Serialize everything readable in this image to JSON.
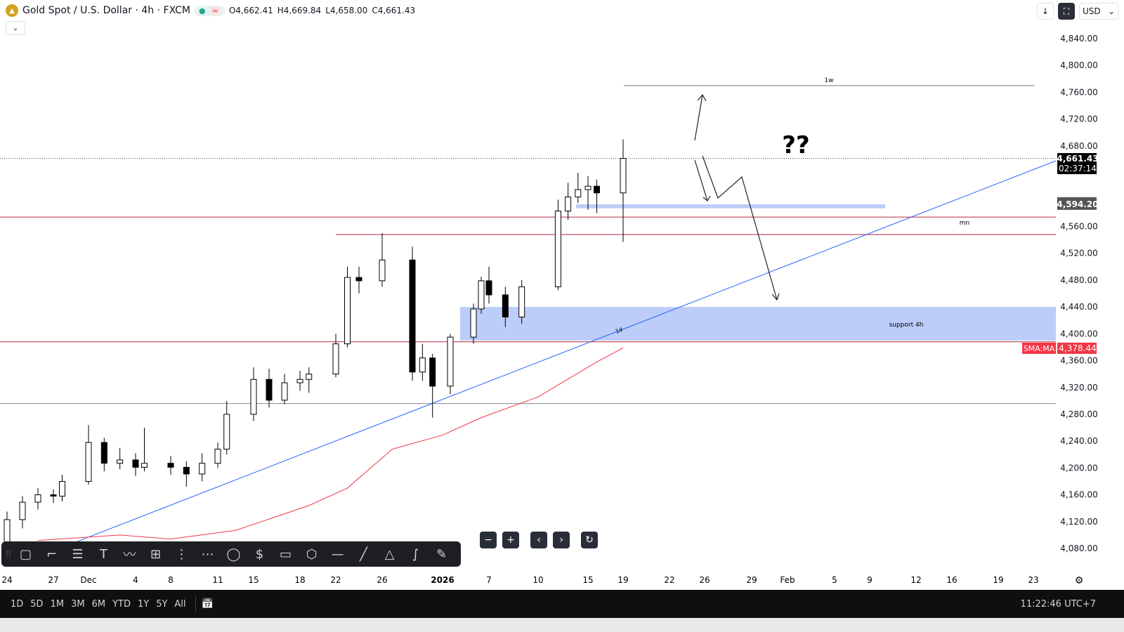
{
  "header": {
    "symbol": "Gold Spot / U.S. Dollar · 4h · FXCM",
    "logo_icon": "gold-coin-icon",
    "status_dot": "●",
    "status_wave": "≈",
    "open": "O4,662.41",
    "high": "H4,669.84",
    "low": "L4,658.00",
    "close": "C4,661.43",
    "collapse": "⌄"
  },
  "topright": {
    "download": "↓",
    "fullscreen": "⛶",
    "currency": "USD",
    "currency_caret": "⌄"
  },
  "chart_data": {
    "type": "candlestick",
    "ylim": [
      4060,
      4860
    ],
    "yticks": [
      4840,
      4800,
      4760,
      4720,
      4680,
      4640,
      4600,
      4560,
      4520,
      4480,
      4440,
      4400,
      4360,
      4320,
      4280,
      4240,
      4200,
      4160,
      4120,
      4080
    ],
    "ytick_labels": [
      "4,840.00",
      "4,800.00",
      "4,760.00",
      "4,720.00",
      "4,680.00",
      "4,640.00",
      "4,600.00",
      "4,560.00",
      "4,520.00",
      "4,480.00",
      "4,440.00",
      "4,400.00",
      "4,360.00",
      "4,320.00",
      "4,280.00",
      "4,240.00",
      "4,200.00",
      "4,160.00",
      "4,120.00",
      "4,080.00"
    ],
    "xtick_labels": [
      "24",
      "27",
      "Dec",
      "4",
      "8",
      "11",
      "15",
      "18",
      "22",
      "26",
      "2026",
      "7",
      "10",
      "15",
      "19",
      "22",
      "26",
      "29",
      "Feb",
      "5",
      "9",
      "12",
      "16",
      "19",
      "23"
    ],
    "candles": [
      [
        "2025-11-24",
        4085,
        4135,
        4075,
        4123
      ],
      [
        "2025-11-25",
        4123,
        4158,
        4110,
        4149
      ],
      [
        "2025-11-26",
        4149,
        4170,
        4138,
        4160
      ],
      [
        "2025-11-27",
        4160,
        4168,
        4148,
        4158
      ],
      [
        "2025-11-28",
        4158,
        4190,
        4150,
        4180
      ],
      [
        "2025-12-01",
        4180,
        4264,
        4175,
        4238
      ],
      [
        "2025-12-02",
        4238,
        4245,
        4195,
        4207
      ],
      [
        "2025-12-03",
        4207,
        4230,
        4198,
        4212
      ],
      [
        "2025-12-04",
        4212,
        4222,
        4188,
        4201
      ],
      [
        "2025-12-05",
        4201,
        4260,
        4195,
        4207
      ],
      [
        "2025-12-08",
        4207,
        4218,
        4190,
        4201
      ],
      [
        "2025-12-09",
        4201,
        4210,
        4172,
        4191
      ],
      [
        "2025-12-10",
        4191,
        4222,
        4180,
        4207
      ],
      [
        "2025-12-11",
        4207,
        4238,
        4200,
        4228
      ],
      [
        "2025-12-12",
        4228,
        4300,
        4220,
        4280
      ],
      [
        "2025-12-15",
        4280,
        4350,
        4270,
        4332
      ],
      [
        "2025-12-16",
        4332,
        4348,
        4290,
        4301
      ],
      [
        "2025-12-17",
        4301,
        4340,
        4295,
        4327
      ],
      [
        "2025-12-18",
        4327,
        4345,
        4315,
        4332
      ],
      [
        "2025-12-19",
        4332,
        4350,
        4312,
        4340
      ],
      [
        "2025-12-22",
        4340,
        4400,
        4335,
        4385
      ],
      [
        "2025-12-23",
        4385,
        4500,
        4380,
        4484
      ],
      [
        "2025-12-24",
        4484,
        4500,
        4460,
        4479
      ],
      [
        "2025-12-26",
        4479,
        4550,
        4470,
        4510
      ],
      [
        "2025-12-29",
        4510,
        4530,
        4330,
        4343
      ],
      [
        "2025-12-30",
        4343,
        4385,
        4330,
        4364
      ],
      [
        "2025-12-31",
        4364,
        4370,
        4275,
        4322
      ],
      [
        "2026-01-02",
        4322,
        4400,
        4310,
        4395
      ],
      [
        "2026-01-05",
        4395,
        4445,
        4385,
        4437
      ],
      [
        "2026-01-06",
        4437,
        4485,
        4430,
        4479
      ],
      [
        "2026-01-07",
        4479,
        4500,
        4445,
        4458
      ],
      [
        "2026-01-08",
        4458,
        4470,
        4410,
        4425
      ],
      [
        "2026-01-09",
        4425,
        4480,
        4415,
        4470
      ],
      [
        "2026-01-12",
        4470,
        4600,
        4465,
        4583
      ],
      [
        "2026-01-13",
        4583,
        4625,
        4570,
        4604
      ],
      [
        "2026-01-14",
        4604,
        4640,
        4595,
        4615
      ],
      [
        "2026-01-15",
        4615,
        4635,
        4585,
        4620
      ],
      [
        "2026-01-16",
        4620,
        4630,
        4580,
        4610
      ],
      [
        "2026-01-19",
        4610,
        4690,
        4537,
        4661.43
      ]
    ],
    "sma": {
      "name": "SMA:MA",
      "value": "4,378.44",
      "color": "#f23645",
      "points": [
        [
          "2025-11-26",
          4092
        ],
        [
          "2025-12-03",
          4100
        ],
        [
          "2025-12-08",
          4094
        ],
        [
          "2025-12-13",
          4107
        ],
        [
          "2025-12-19",
          4144
        ],
        [
          "2025-12-23",
          4170
        ],
        [
          "2025-12-27",
          4228
        ],
        [
          "2026-01-01",
          4249
        ],
        [
          "2026-01-06",
          4275
        ],
        [
          "2026-01-10",
          4306
        ],
        [
          "2026-01-16",
          4358
        ],
        [
          "2026-01-19",
          4379
        ]
      ]
    },
    "last_price": {
      "value": "4,661.43",
      "countdown": "02:37:14",
      "price": 4661.43
    },
    "marker_price": {
      "value": "4,594.20",
      "price": 4594.2
    },
    "colors": {
      "up": "#000000",
      "down": "#000000",
      "trend": "#2962ff",
      "level": "#b2243a",
      "zone": "#bbcdf8"
    },
    "annotations": {
      "weekly": "1w",
      "monthly": "mn",
      "daily": "1d",
      "zone": "support 4h",
      "question": "??"
    },
    "levels": {
      "weekly": 4770,
      "red1": 4574,
      "red2": 4548,
      "red3": 4388,
      "gray": 4296,
      "zone_top": 4440,
      "zone_bottom": 4390,
      "small_zone_top": 4593,
      "small_zone_bottom": 4587
    }
  },
  "drawing_tools": [
    "rectangle-icon",
    "callout-icon",
    "parallel-lines-icon",
    "text-icon",
    "path-icon",
    "long-position-icon",
    "fib-retracement-icon",
    "fib-extension-icon",
    "shape-icon",
    "price-label-icon",
    "comment-icon",
    "ellipse-icon",
    "horizontal-ray-icon",
    "trend-line-icon",
    "triangle-icon",
    "curve-icon",
    "brush-icon"
  ],
  "drawing_glyphs": [
    "▢",
    "⌐",
    "☰",
    "T",
    "〰",
    "⊞",
    "⋮",
    "⋯",
    "◯",
    "$",
    "▭",
    "⬡",
    "—",
    "╱",
    "△",
    "∫",
    "✎"
  ],
  "nav": {
    "zoom_out": "−",
    "zoom_in": "+",
    "prev": "‹",
    "next": "›",
    "reset": "↻"
  },
  "bottom": {
    "ranges": [
      "1D",
      "5D",
      "1M",
      "3M",
      "6M",
      "YTD",
      "1Y",
      "5Y",
      "All"
    ],
    "calendar": "📅",
    "clock": "11:22:46 UTC+7",
    "settings": "⚙"
  }
}
